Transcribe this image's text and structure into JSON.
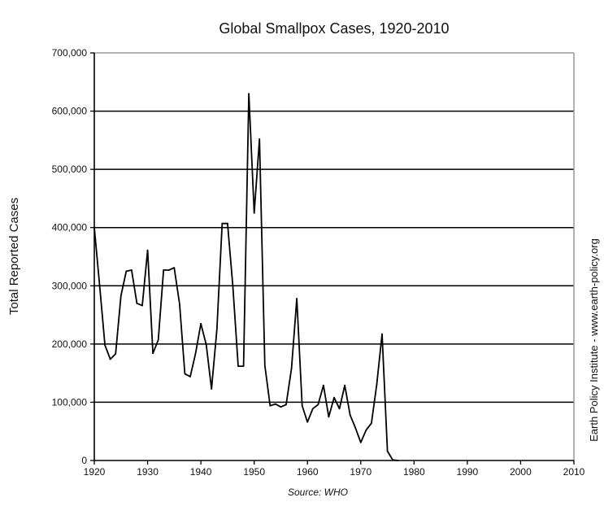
{
  "chart_data": {
    "type": "line",
    "title": "Global Smallpox Cases, 1920-2010",
    "xlabel": "Source: WHO",
    "ylabel": "Total Reported Cases",
    "credit": "Earth Policy Institute - www.earth-policy.org",
    "xlim": [
      1920,
      2010
    ],
    "ylim": [
      0,
      700000
    ],
    "grid": true,
    "x_ticks": [
      1920,
      1930,
      1940,
      1950,
      1960,
      1970,
      1980,
      1990,
      2000,
      2010
    ],
    "x_tick_labels": [
      "1920",
      "1930",
      "1940",
      "1950",
      "1960",
      "1970",
      "1980",
      "1990",
      "2000",
      "2010"
    ],
    "y_ticks": [
      0,
      100000,
      200000,
      300000,
      400000,
      500000,
      600000,
      700000
    ],
    "y_tick_labels": [
      "0",
      "100,000",
      "200,000",
      "300,000",
      "400,000",
      "500,000",
      "600,000",
      "700,000"
    ],
    "series": [
      {
        "name": "Total Reported Cases",
        "color": "#000000",
        "x": [
          1920,
          1921,
          1922,
          1923,
          1924,
          1925,
          1926,
          1927,
          1928,
          1929,
          1930,
          1931,
          1932,
          1933,
          1934,
          1935,
          1936,
          1937,
          1938,
          1939,
          1940,
          1941,
          1942,
          1943,
          1944,
          1945,
          1946,
          1947,
          1948,
          1949,
          1950,
          1951,
          1952,
          1953,
          1954,
          1955,
          1956,
          1957,
          1958,
          1959,
          1960,
          1961,
          1962,
          1963,
          1964,
          1965,
          1966,
          1967,
          1968,
          1969,
          1970,
          1971,
          1972,
          1973,
          1974,
          1975,
          1976,
          1977
        ],
        "values": [
          400000,
          300000,
          198000,
          174000,
          183000,
          283000,
          325000,
          327000,
          270000,
          266000,
          361000,
          184000,
          207000,
          327000,
          327000,
          331000,
          269000,
          149000,
          144000,
          184000,
          235000,
          199000,
          123000,
          225000,
          407000,
          407000,
          300000,
          162000,
          162000,
          630000,
          425000,
          552000,
          163000,
          94000,
          97000,
          92000,
          96000,
          158000,
          278000,
          94000,
          66000,
          89000,
          96000,
          129000,
          75000,
          108000,
          89000,
          129000,
          78000,
          56000,
          31000,
          52000,
          64000,
          130000,
          217000,
          16000,
          1000,
          0
        ]
      }
    ]
  }
}
